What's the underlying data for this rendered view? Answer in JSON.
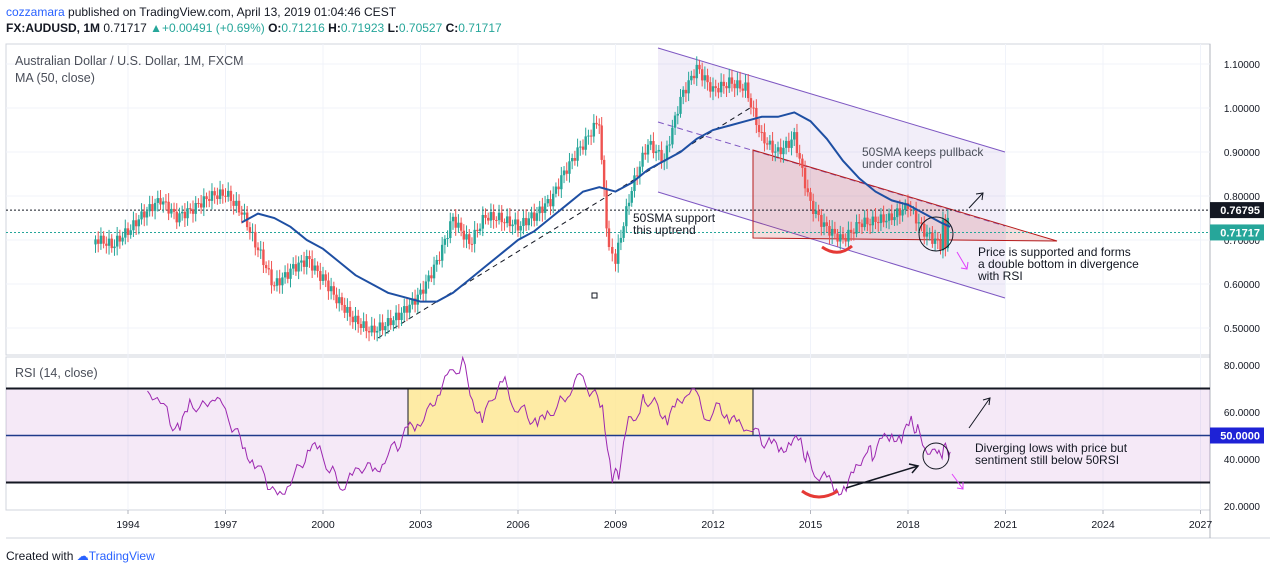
{
  "header": {
    "author": "cozzamara",
    "published_text": "published on TradingView.com, April 13, 2019 01:04:46 CEST",
    "symbol": "FX:AUDUSD, 1M",
    "last": "0.71717",
    "change": "+0.00491 (+0.69%)",
    "open_label": "O:",
    "open": "0.71216",
    "high_label": "H:",
    "high": "0.71923",
    "low_label": "L:",
    "low": "0.70527",
    "close_label": "C:",
    "close": "0.71717"
  },
  "footer": {
    "created_with": "Created with",
    "brand": "TradingView"
  },
  "colors": {
    "up": "#26a69a",
    "down": "#ef5350",
    "ma": "#1e4fa3",
    "rsi": "#9c27b0",
    "channel": "#7e57c2",
    "triangle": "#b71c1c",
    "accent_pink": "#e040fb"
  },
  "chart_data": [
    {
      "type": "candlestick",
      "title": "Australian Dollar / U.S. Dollar, 1M, FXCM",
      "indicator": "MA (50, close)",
      "x_ticks": [
        "1994",
        "1997",
        "2000",
        "2003",
        "2006",
        "2009",
        "2012",
        "2015",
        "2018",
        "2021",
        "2024",
        "2027"
      ],
      "y_ticks": [
        "1.10000",
        "1.00000",
        "0.90000",
        "0.80000",
        "0.70000",
        "0.60000",
        "0.50000"
      ],
      "ylim": [
        0.45,
        1.12
      ],
      "price_labels": [
        {
          "value": "0.76795",
          "style": "black"
        },
        {
          "value": "0.71717",
          "style": "green"
        }
      ],
      "close_series": [
        [
          1993.0,
          0.69
        ],
        [
          1993.5,
          0.67
        ],
        [
          1994.0,
          0.7
        ],
        [
          1994.5,
          0.74
        ],
        [
          1995.0,
          0.77
        ],
        [
          1995.5,
          0.73
        ],
        [
          1996.0,
          0.75
        ],
        [
          1996.5,
          0.78
        ],
        [
          1997.0,
          0.79
        ],
        [
          1997.5,
          0.75
        ],
        [
          1998.0,
          0.67
        ],
        [
          1998.5,
          0.59
        ],
        [
          1999.0,
          0.63
        ],
        [
          1999.5,
          0.66
        ],
        [
          2000.0,
          0.62
        ],
        [
          2000.5,
          0.57
        ],
        [
          2001.0,
          0.53
        ],
        [
          2001.5,
          0.51
        ],
        [
          2002.0,
          0.53
        ],
        [
          2002.5,
          0.56
        ],
        [
          2003.0,
          0.6
        ],
        [
          2003.5,
          0.67
        ],
        [
          2004.0,
          0.77
        ],
        [
          2004.5,
          0.71
        ],
        [
          2005.0,
          0.77
        ],
        [
          2005.5,
          0.76
        ],
        [
          2006.0,
          0.74
        ],
        [
          2006.5,
          0.76
        ],
        [
          2007.0,
          0.79
        ],
        [
          2007.5,
          0.86
        ],
        [
          2008.0,
          0.91
        ],
        [
          2008.5,
          0.96
        ],
        [
          2008.8,
          0.66
        ],
        [
          2009.0,
          0.64
        ],
        [
          2009.5,
          0.8
        ],
        [
          2010.0,
          0.9
        ],
        [
          2010.5,
          0.86
        ],
        [
          2011.0,
          1.0
        ],
        [
          2011.5,
          1.07
        ],
        [
          2012.0,
          1.02
        ],
        [
          2012.5,
          1.04
        ],
        [
          2013.0,
          1.03
        ],
        [
          2013.5,
          0.92
        ],
        [
          2014.0,
          0.89
        ],
        [
          2014.5,
          0.93
        ],
        [
          2015.0,
          0.78
        ],
        [
          2015.5,
          0.73
        ],
        [
          2016.0,
          0.71
        ],
        [
          2016.5,
          0.75
        ],
        [
          2017.0,
          0.76
        ],
        [
          2017.5,
          0.77
        ],
        [
          2018.0,
          0.8
        ],
        [
          2018.5,
          0.74
        ],
        [
          2019.0,
          0.71
        ],
        [
          2019.3,
          0.72
        ]
      ],
      "ma_series": [
        [
          1997.5,
          0.74
        ],
        [
          1998.0,
          0.76
        ],
        [
          1998.5,
          0.75
        ],
        [
          1999.0,
          0.73
        ],
        [
          1999.5,
          0.7
        ],
        [
          2000.0,
          0.68
        ],
        [
          2000.5,
          0.65
        ],
        [
          2001.0,
          0.62
        ],
        [
          2001.5,
          0.6
        ],
        [
          2002.0,
          0.58
        ],
        [
          2002.5,
          0.57
        ],
        [
          2003.0,
          0.56
        ],
        [
          2003.5,
          0.56
        ],
        [
          2004.0,
          0.58
        ],
        [
          2004.5,
          0.61
        ],
        [
          2005.0,
          0.64
        ],
        [
          2005.5,
          0.67
        ],
        [
          2006.0,
          0.7
        ],
        [
          2006.5,
          0.72
        ],
        [
          2007.0,
          0.75
        ],
        [
          2007.5,
          0.78
        ],
        [
          2008.0,
          0.81
        ],
        [
          2008.5,
          0.82
        ],
        [
          2009.0,
          0.81
        ],
        [
          2009.5,
          0.83
        ],
        [
          2010.0,
          0.86
        ],
        [
          2010.5,
          0.88
        ],
        [
          2011.0,
          0.9
        ],
        [
          2011.5,
          0.93
        ],
        [
          2012.0,
          0.95
        ],
        [
          2012.5,
          0.96
        ],
        [
          2013.0,
          0.97
        ],
        [
          2013.5,
          0.98
        ],
        [
          2014.0,
          0.98
        ],
        [
          2014.5,
          0.99
        ],
        [
          2015.0,
          0.97
        ],
        [
          2015.5,
          0.93
        ],
        [
          2016.0,
          0.88
        ],
        [
          2016.5,
          0.84
        ],
        [
          2017.0,
          0.81
        ],
        [
          2017.5,
          0.79
        ],
        [
          2018.0,
          0.78
        ],
        [
          2018.5,
          0.76
        ],
        [
          2019.0,
          0.74
        ],
        [
          2019.3,
          0.73
        ]
      ],
      "annotations": [
        [
          "50SMA keeps pullback",
          "under control"
        ],
        [
          "50SMA support",
          "this uptrend"
        ],
        [
          "Price is supported and forms",
          "a double bottom in divergence",
          "with RSI"
        ]
      ]
    },
    {
      "type": "line",
      "title": "RSI (14, close)",
      "y_ticks": [
        "80.0000",
        "60.0000",
        "40.0000",
        "20.0000"
      ],
      "ylim": [
        18,
        82
      ],
      "levels": [
        70,
        50,
        30
      ],
      "level_label": "50.0000",
      "series": [
        [
          1994.6,
          66
        ],
        [
          1994.9,
          69
        ],
        [
          1995.3,
          56
        ],
        [
          1995.6,
          52
        ],
        [
          1995.9,
          64
        ],
        [
          1996.3,
          62
        ],
        [
          1996.6,
          68
        ],
        [
          1996.9,
          61
        ],
        [
          1997.3,
          52
        ],
        [
          1997.6,
          44
        ],
        [
          1997.9,
          38
        ],
        [
          1998.3,
          30
        ],
        [
          1998.6,
          22
        ],
        [
          1998.9,
          30
        ],
        [
          1999.3,
          37
        ],
        [
          1999.6,
          45
        ],
        [
          1999.9,
          43
        ],
        [
          2000.3,
          34
        ],
        [
          2000.6,
          29
        ],
        [
          2000.9,
          32
        ],
        [
          2001.3,
          37
        ],
        [
          2001.6,
          34
        ],
        [
          2001.9,
          41
        ],
        [
          2002.3,
          46
        ],
        [
          2002.6,
          52
        ],
        [
          2002.9,
          55
        ],
        [
          2003.3,
          62
        ],
        [
          2003.6,
          70
        ],
        [
          2003.9,
          75
        ],
        [
          2004.3,
          81
        ],
        [
          2004.6,
          66
        ],
        [
          2004.9,
          56
        ],
        [
          2005.3,
          68
        ],
        [
          2005.6,
          72
        ],
        [
          2005.9,
          63
        ],
        [
          2006.3,
          59
        ],
        [
          2006.6,
          54
        ],
        [
          2006.9,
          59
        ],
        [
          2007.3,
          64
        ],
        [
          2007.6,
          70
        ],
        [
          2007.9,
          74
        ],
        [
          2008.3,
          68
        ],
        [
          2008.6,
          62
        ],
        [
          2008.9,
          32
        ],
        [
          2009.1,
          34
        ],
        [
          2009.4,
          55
        ],
        [
          2009.7,
          61
        ],
        [
          2009.9,
          66
        ],
        [
          2010.3,
          63
        ],
        [
          2010.6,
          56
        ],
        [
          2010.9,
          63
        ],
        [
          2011.2,
          70
        ],
        [
          2011.5,
          66
        ],
        [
          2011.8,
          58
        ],
        [
          2012.2,
          63
        ],
        [
          2012.5,
          57
        ],
        [
          2012.8,
          54
        ],
        [
          2013.1,
          55
        ],
        [
          2013.5,
          48
        ],
        [
          2013.8,
          46
        ],
        [
          2014.1,
          44
        ],
        [
          2014.4,
          48
        ],
        [
          2014.7,
          46
        ],
        [
          2014.9,
          40
        ],
        [
          2015.2,
          34
        ],
        [
          2015.5,
          31
        ],
        [
          2015.8,
          27
        ],
        [
          2016.1,
          28
        ],
        [
          2016.4,
          35
        ],
        [
          2016.7,
          45
        ],
        [
          2016.9,
          42
        ],
        [
          2017.2,
          47
        ],
        [
          2017.5,
          51
        ],
        [
          2017.8,
          48
        ],
        [
          2018.1,
          56
        ],
        [
          2018.3,
          52
        ],
        [
          2018.6,
          45
        ],
        [
          2018.9,
          40
        ],
        [
          2019.1,
          44
        ],
        [
          2019.3,
          43
        ]
      ],
      "annotations": [
        [
          "Diverging lows with price but",
          "sentiment still below 50RSI"
        ]
      ]
    }
  ]
}
